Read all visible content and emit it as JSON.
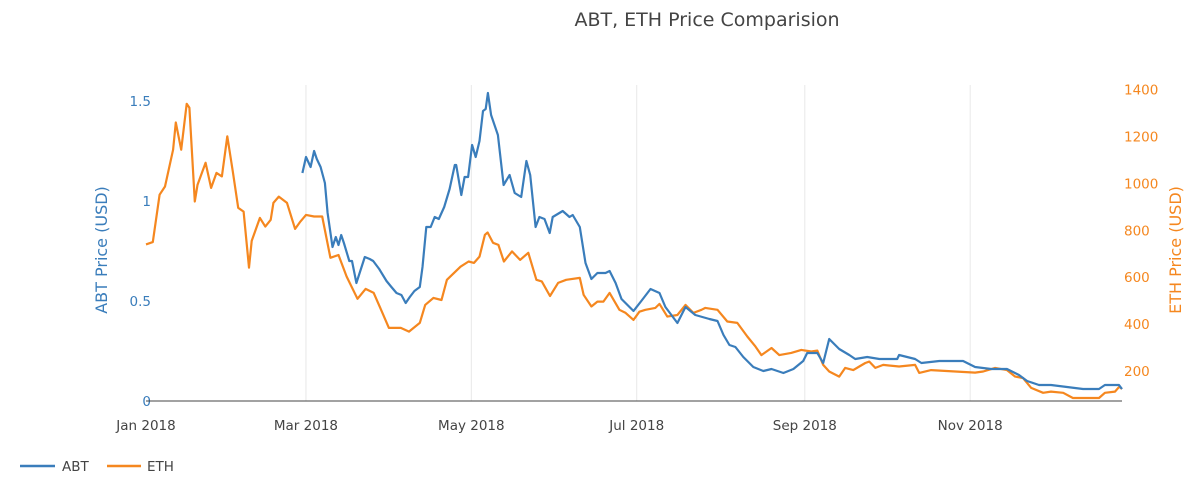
{
  "chart_data": {
    "type": "line",
    "title": "ABT, ETH Price Comparision",
    "xlabel": "",
    "x_unit": "days since 2018-01-01",
    "xlim": [
      0,
      360
    ],
    "x_ticks": [
      {
        "label": "Jan 2018",
        "day": 0
      },
      {
        "label": "Mar 2018",
        "day": 59
      },
      {
        "label": "May 2018",
        "day": 120
      },
      {
        "label": "Jul 2018",
        "day": 181
      },
      {
        "label": "Sep 2018",
        "day": 243
      },
      {
        "label": "Nov 2018",
        "day": 304
      }
    ],
    "y_left": {
      "label": "ABT Price (USD)",
      "range": [
        0,
        1.58
      ],
      "ticks": [
        {
          "label": "0",
          "v": 0
        },
        {
          "label": "0.5",
          "v": 0.5
        },
        {
          "label": "1",
          "v": 1
        },
        {
          "label": "1.5",
          "v": 1.5
        }
      ]
    },
    "y_right": {
      "label": "ETH Price (USD)",
      "range": [
        72,
        1420
      ],
      "ticks": [
        {
          "label": "200",
          "v": 200
        },
        {
          "label": "400",
          "v": 400
        },
        {
          "label": "600",
          "v": 600
        },
        {
          "label": "800",
          "v": 800
        },
        {
          "label": "1000",
          "v": 1000
        },
        {
          "label": "1200",
          "v": 1200
        },
        {
          "label": "1400",
          "v": 1400
        }
      ]
    },
    "grid": "vertical only",
    "legend_position": "bottom-left",
    "series": [
      {
        "name": "ABT",
        "axis": "left",
        "color": "#3a7dbb",
        "x": [
          57.7,
          59,
          60.7,
          62,
          63,
          64.4,
          66,
          67,
          68.8,
          70,
          71,
          72,
          73,
          75,
          76,
          77.6,
          80.7,
          82.5,
          83.8,
          86,
          88.7,
          90.5,
          92.4,
          94.2,
          95.8,
          97.3,
          99,
          101,
          102,
          103.4,
          105,
          106.5,
          108,
          110,
          112,
          113.9,
          114.4,
          116.3,
          117.5,
          118.8,
          120.3,
          121.6,
          123,
          124.3,
          125.3,
          126.1,
          127.3,
          129.8,
          131.9,
          134.1,
          136,
          138.4,
          140.3,
          141.7,
          143.7,
          145.1,
          147,
          148.9,
          150,
          153.7,
          156.2,
          157.4,
          160,
          162.1,
          164.3,
          166.5,
          169.5,
          171,
          173.2,
          175.4,
          177.6,
          179.8,
          182.7,
          186.1,
          189.4,
          191.6,
          196,
          199,
          202.6,
          207.8,
          210.8,
          213,
          215.2,
          217.4,
          220.3,
          224,
          227.7,
          230.7,
          235.1,
          238.8,
          242.4,
          243.9,
          247.6,
          249.8,
          252,
          255.7,
          259.4,
          261.6,
          266,
          270.5,
          277.1,
          277.8,
          283.7,
          286,
          292.6,
          301.4,
          305.8,
          311.7,
          317.6,
          322,
          325,
          329.4,
          333.8,
          339.7,
          345.6,
          351.5,
          353.7,
          358.9,
          360
        ],
        "y": [
          1.14,
          1.22,
          1.17,
          1.25,
          1.21,
          1.17,
          1.09,
          0.94,
          0.77,
          0.82,
          0.78,
          0.83,
          0.79,
          0.7,
          0.7,
          0.59,
          0.72,
          0.71,
          0.7,
          0.66,
          0.6,
          0.57,
          0.54,
          0.53,
          0.49,
          0.52,
          0.55,
          0.57,
          0.67,
          0.87,
          0.87,
          0.92,
          0.91,
          0.97,
          1.06,
          1.18,
          1.18,
          1.03,
          1.12,
          1.12,
          1.28,
          1.22,
          1.3,
          1.45,
          1.46,
          1.54,
          1.43,
          1.33,
          1.08,
          1.13,
          1.04,
          1.02,
          1.2,
          1.13,
          0.87,
          0.92,
          0.91,
          0.84,
          0.92,
          0.95,
          0.92,
          0.93,
          0.87,
          0.69,
          0.61,
          0.64,
          0.64,
          0.65,
          0.59,
          0.51,
          0.48,
          0.45,
          0.5,
          0.56,
          0.54,
          0.47,
          0.39,
          0.47,
          0.43,
          0.41,
          0.4,
          0.33,
          0.28,
          0.27,
          0.22,
          0.17,
          0.15,
          0.16,
          0.14,
          0.16,
          0.2,
          0.24,
          0.24,
          0.19,
          0.31,
          0.26,
          0.23,
          0.21,
          0.22,
          0.21,
          0.21,
          0.23,
          0.21,
          0.19,
          0.2,
          0.2,
          0.17,
          0.16,
          0.16,
          0.13,
          0.1,
          0.08,
          0.08,
          0.07,
          0.06,
          0.06,
          0.08,
          0.08,
          0.06
        ]
      },
      {
        "name": "ETH",
        "axis": "right",
        "color": "#f5871f",
        "x": [
          0,
          2.5,
          5,
          7,
          10,
          11,
          13,
          15,
          16,
          18,
          19,
          22,
          24,
          26,
          28,
          30,
          32,
          34,
          36,
          38,
          39,
          42,
          44,
          46,
          47,
          49,
          52,
          55,
          57,
          59,
          62,
          65,
          68,
          71,
          74,
          78,
          81,
          84,
          87,
          89.6,
          94,
          97,
          101,
          103,
          106,
          109,
          111,
          116,
          119,
          121,
          123,
          125,
          126,
          128,
          130,
          132,
          135,
          138,
          141,
          144,
          146,
          149,
          152,
          155,
          160,
          161.4,
          164.3,
          166.5,
          168.7,
          171,
          174.6,
          176.9,
          179.8,
          182,
          184.2,
          187.9,
          189.4,
          192.3,
          196,
          199,
          201.9,
          204.9,
          206.3,
          210.8,
          214.4,
          218.1,
          221.8,
          224.8,
          227,
          230.7,
          233.6,
          238,
          241.7,
          245.4,
          247.6,
          249.8,
          252,
          255.7,
          257.9,
          260.9,
          263.1,
          265.3,
          266.8,
          269,
          271.9,
          277.8,
          283.7,
          285.2,
          289.6,
          298.5,
          305.8,
          308.8,
          313.2,
          317.6,
          320.6,
          323.5,
          326.5,
          330.9,
          333.8,
          338.3,
          341.9,
          347.1,
          351.5,
          353.7,
          357.4,
          359,
          360
        ],
        "y": [
          740,
          750,
          952,
          987,
          1144,
          1260,
          1144,
          1340,
          1323,
          923,
          994,
          1088,
          981,
          1045,
          1030,
          1201,
          1051,
          896,
          880,
          641,
          755,
          853,
          816,
          845,
          917,
          944,
          917,
          806,
          838,
          866,
          859,
          859,
          683,
          695,
          603,
          508,
          550,
          533,
          453,
          384,
          384,
          368,
          405,
          482,
          512,
          503,
          589,
          645,
          667,
          661,
          688,
          781,
          791,
          747,
          738,
          667,
          710,
          674,
          704,
          589,
          582,
          520,
          576,
          589,
          597,
          525,
          475,
          496,
          496,
          533,
          461,
          448,
          418,
          453,
          461,
          469,
          486,
          432,
          439,
          482,
          448,
          461,
          469,
          461,
          411,
          405,
          347,
          304,
          268,
          298,
          268,
          277,
          290,
          283,
          287,
          226,
          198,
          176,
          213,
          204,
          219,
          234,
          240,
          213,
          226,
          219,
          226,
          192,
          204,
          198,
          193,
          198,
          213,
          204,
          176,
          170,
          128,
          107,
          112,
          107,
          85,
          85,
          85,
          107,
          112,
          133,
          123
        ]
      }
    ]
  }
}
